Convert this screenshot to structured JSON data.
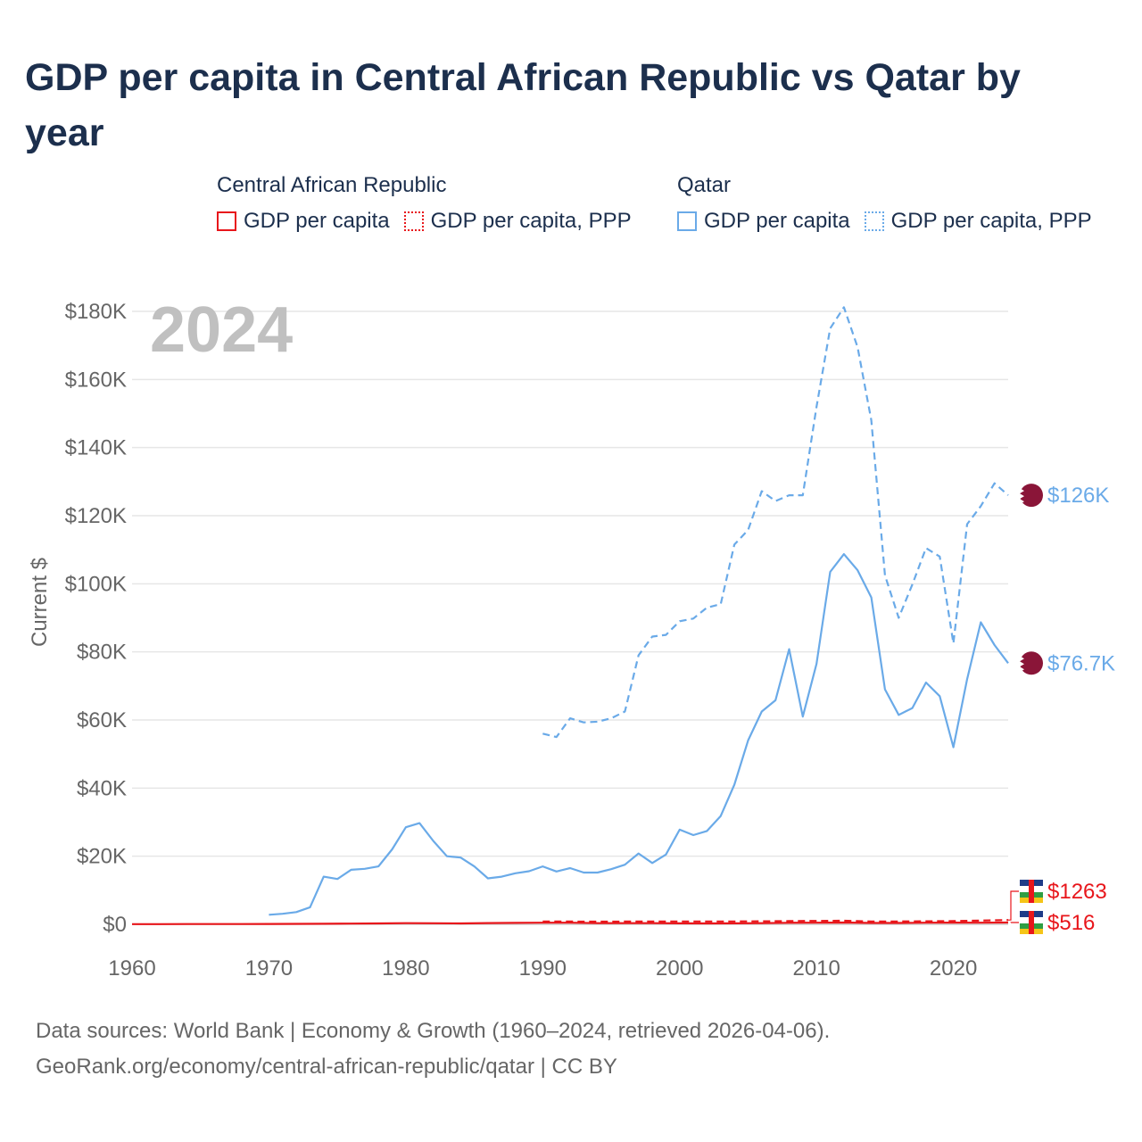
{
  "title": "GDP per capita in Central African Republic vs Qatar by year",
  "legend": {
    "groups": [
      {
        "country": "Central African Republic",
        "items": [
          {
            "label": "GDP per capita"
          },
          {
            "label": "GDP per capita, PPP"
          }
        ]
      },
      {
        "country": "Qatar",
        "items": [
          {
            "label": "GDP per capita"
          },
          {
            "label": "GDP per capita, PPP"
          }
        ]
      }
    ]
  },
  "colors": {
    "car": "#e8161b",
    "qatar": "#6aaae8",
    "grid": "#e6e6e6",
    "axis_text": "#666666",
    "year_watermark": "#c0c0c0",
    "qatar_flag": "#8a1538"
  },
  "footer": {
    "line1": "Data sources: World Bank | Economy & Growth (1960–2024, retrieved 2026-04-06).",
    "line2": "GeoRank.org/economy/central-african-republic/qatar | CC BY"
  },
  "chart_data": {
    "type": "line",
    "year_watermark": "2024",
    "ylabel": "Current $",
    "xlim": [
      1960,
      2024
    ],
    "ylim": [
      0,
      180000
    ],
    "x_ticks": [
      1960,
      1970,
      1980,
      1990,
      2000,
      2010,
      2020
    ],
    "y_ticks": [
      {
        "value": 0,
        "label": "$0"
      },
      {
        "value": 20000,
        "label": "$20K"
      },
      {
        "value": 40000,
        "label": "$40K"
      },
      {
        "value": 60000,
        "label": "$60K"
      },
      {
        "value": 80000,
        "label": "$80K"
      },
      {
        "value": 100000,
        "label": "$100K"
      },
      {
        "value": 120000,
        "label": "$120K"
      },
      {
        "value": 140000,
        "label": "$140K"
      },
      {
        "value": 160000,
        "label": "$160K"
      },
      {
        "value": 180000,
        "label": "$180K"
      }
    ],
    "series": [
      {
        "name": "Central African Republic GDP per capita",
        "country": "car",
        "style": "solid",
        "end_label": "$516",
        "x": [
          1960,
          1962,
          1964,
          1966,
          1968,
          1970,
          1972,
          1974,
          1976,
          1978,
          1980,
          1982,
          1984,
          1986,
          1988,
          1990,
          1992,
          1994,
          1996,
          1998,
          2000,
          2002,
          2004,
          2006,
          2008,
          2010,
          2012,
          2014,
          2016,
          2018,
          2020,
          2022,
          2024
        ],
        "y": [
          60,
          65,
          70,
          80,
          90,
          100,
          120,
          160,
          200,
          250,
          330,
          320,
          270,
          370,
          420,
          480,
          460,
          330,
          350,
          330,
          290,
          260,
          300,
          340,
          450,
          460,
          530,
          380,
          400,
          480,
          500,
          470,
          516
        ]
      },
      {
        "name": "Central African Republic GDP per capita, PPP",
        "country": "car",
        "style": "dashed",
        "end_label": "$1263",
        "x": [
          1990,
          1992,
          1994,
          1996,
          1998,
          2000,
          2002,
          2004,
          2006,
          2008,
          2010,
          2012,
          2014,
          2016,
          2018,
          2020,
          2022,
          2024
        ],
        "y": [
          800,
          820,
          790,
          800,
          820,
          850,
          830,
          840,
          900,
          950,
          1000,
          1050,
          800,
          850,
          900,
          950,
          1100,
          1263
        ]
      },
      {
        "name": "Qatar GDP per capita",
        "country": "qatar",
        "style": "solid",
        "end_label": "$76.7K",
        "x": [
          1970,
          1971,
          1972,
          1973,
          1974,
          1975,
          1976,
          1977,
          1978,
          1979,
          1980,
          1981,
          1982,
          1983,
          1984,
          1985,
          1986,
          1987,
          1988,
          1989,
          1990,
          1991,
          1992,
          1993,
          1994,
          1995,
          1996,
          1997,
          1998,
          1999,
          2000,
          2001,
          2002,
          2003,
          2004,
          2005,
          2006,
          2007,
          2008,
          2009,
          2010,
          2011,
          2012,
          2013,
          2014,
          2015,
          2016,
          2017,
          2018,
          2019,
          2020,
          2021,
          2022,
          2023,
          2024
        ],
        "y": [
          2800,
          3100,
          3600,
          5000,
          14000,
          13300,
          16000,
          16300,
          17000,
          22000,
          28500,
          29700,
          24500,
          20000,
          19600,
          17000,
          13500,
          14000,
          15000,
          15600,
          17000,
          15500,
          16500,
          15200,
          15200,
          16200,
          17500,
          20800,
          18000,
          20500,
          27800,
          26200,
          27400,
          31800,
          41000,
          54000,
          62500,
          65800,
          80800,
          61000,
          76500,
          103500,
          108700,
          104000,
          96000,
          69000,
          61500,
          63500,
          71000,
          67000,
          52000,
          72000,
          88700,
          82000,
          76700
        ]
      },
      {
        "name": "Qatar GDP per capita, PPP",
        "country": "qatar",
        "style": "dashed",
        "end_label": "$126K",
        "x": [
          1990,
          1991,
          1992,
          1993,
          1994,
          1995,
          1996,
          1997,
          1998,
          1999,
          2000,
          2001,
          2002,
          2003,
          2004,
          2005,
          2006,
          2007,
          2008,
          2009,
          2010,
          2011,
          2012,
          2013,
          2014,
          2015,
          2016,
          2017,
          2018,
          2019,
          2020,
          2021,
          2022,
          2023,
          2024
        ],
        "y": [
          56000,
          55000,
          60500,
          59300,
          59500,
          60500,
          62500,
          79000,
          84500,
          85000,
          89000,
          89800,
          93000,
          94000,
          111500,
          115800,
          127200,
          124300,
          126000,
          126000,
          152000,
          175000,
          181200,
          169500,
          148000,
          102500,
          90000,
          99800,
          110500,
          108000,
          82500,
          117500,
          122800,
          129500,
          126000
        ]
      }
    ]
  }
}
